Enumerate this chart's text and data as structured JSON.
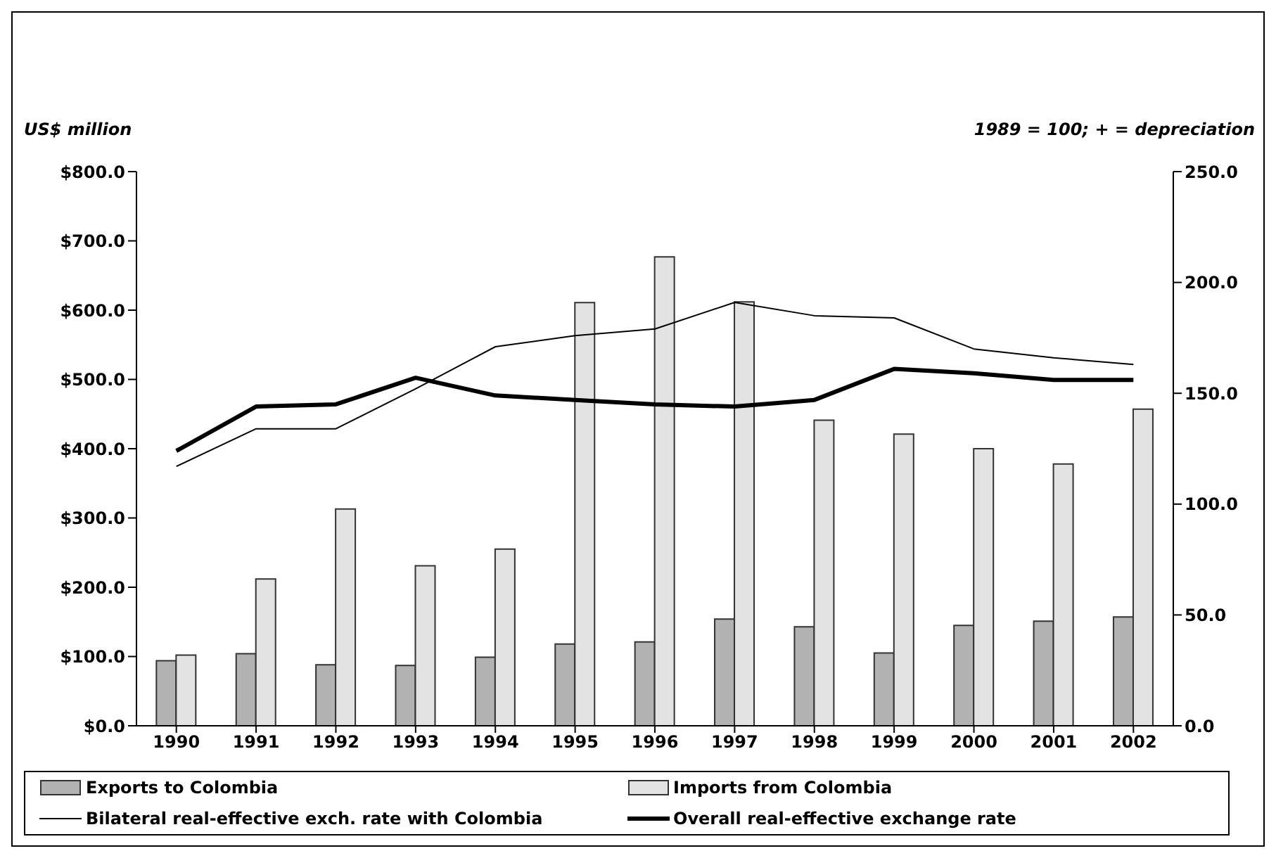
{
  "chart_data": {
    "type": "bar",
    "ylabel": "US$ million",
    "y2label": "1989 = 100; + = depreciation",
    "categories": [
      "1990",
      "1991",
      "1992",
      "1993",
      "1994",
      "1995",
      "1996",
      "1997",
      "1998",
      "1999",
      "2000",
      "2001",
      "2002"
    ],
    "series": [
      {
        "name": "Exports to Colombia",
        "color": "#b2b2b2",
        "values": [
          94,
          104,
          88,
          87,
          99,
          118,
          121,
          154,
          143,
          105,
          145,
          151,
          157
        ]
      },
      {
        "name": "Imports from Colombia",
        "color": "#e3e3e3",
        "values": [
          102,
          212,
          313,
          231,
          255,
          611,
          677,
          612,
          441,
          421,
          400,
          378,
          457
        ]
      },
      {
        "name": "Bilateral real-effective exch. rate with Colombia",
        "type": "line",
        "axis": "y2",
        "color": "#000000",
        "values": [
          117,
          134,
          134,
          152,
          171,
          176,
          179,
          191,
          185,
          184,
          170,
          166,
          163
        ]
      },
      {
        "name": "Overall real-effective exchange rate",
        "type": "line",
        "axis": "y2",
        "color": "#000000",
        "values": [
          124,
          144,
          145,
          157,
          149,
          147,
          145,
          144,
          147,
          161,
          159,
          156,
          156
        ]
      }
    ],
    "ylim": [
      0,
      800
    ],
    "yticks": [
      {
        "value": 0,
        "label": "$0.0"
      },
      {
        "value": 100,
        "label": "$100.0"
      },
      {
        "value": 200,
        "label": "$200.0"
      },
      {
        "value": 300,
        "label": "$300.0"
      },
      {
        "value": 400,
        "label": "$400.0"
      },
      {
        "value": 500,
        "label": "$500.0"
      },
      {
        "value": 600,
        "label": "$600.0"
      },
      {
        "value": 700,
        "label": "$700.0"
      },
      {
        "value": 800,
        "label": "$800.0"
      }
    ],
    "y2lim": [
      0,
      250
    ],
    "y2ticks": [
      {
        "value": 0,
        "label": "0.0"
      },
      {
        "value": 50,
        "label": "50.0"
      },
      {
        "value": 100,
        "label": "100.0"
      },
      {
        "value": 150,
        "label": "150.0"
      },
      {
        "value": 200,
        "label": "200.0"
      },
      {
        "value": 250,
        "label": "250.0"
      }
    ],
    "grid": false,
    "legend": "bottom",
    "marker": "none",
    "line_style": "solid"
  }
}
